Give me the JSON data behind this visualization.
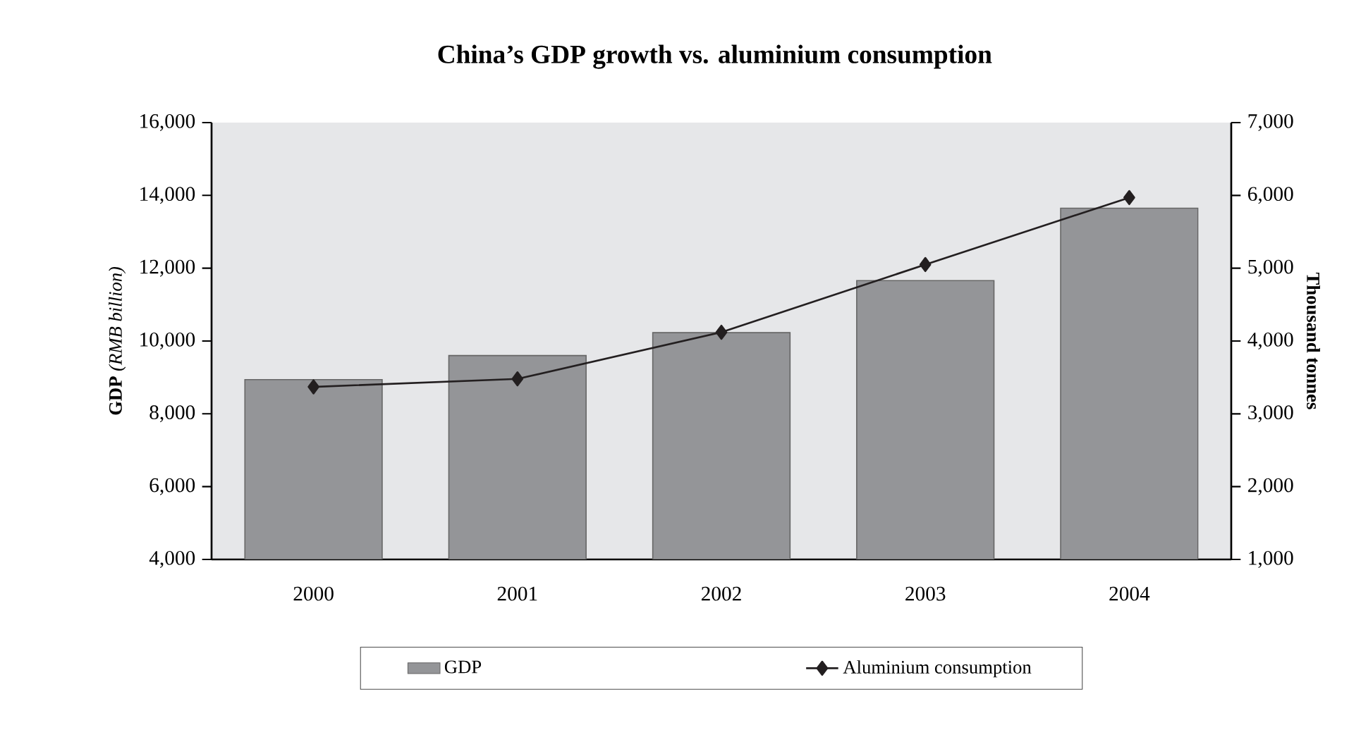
{
  "chart_data": {
    "type": "bar",
    "title": "China’s GDP growth vs. aluminium consumption",
    "ylabel": "**GDP** *(RMB billion)*",
    "y2label": "Thousand tonnes",
    "categories": [
      "2000",
      "2001",
      "2002",
      "2003",
      "2004"
    ],
    "series": [
      {
        "name": "GDP",
        "color": "#949598",
        "values": [
          8940,
          9600,
          10230,
          11660,
          13650
        ]
      },
      {
        "name": "Aluminium consumption",
        "type": "line",
        "axis": "y2",
        "color": "#231f20",
        "marker": "diamond",
        "line_style": "solid",
        "values": [
          3370,
          3480,
          4120,
          5050,
          5970
        ]
      }
    ],
    "ylim": [
      4000,
      16000
    ],
    "yticks": [
      {
        "value": 4000,
        "label": "4,000"
      },
      {
        "value": 6000,
        "label": "6,000"
      },
      {
        "value": 8000,
        "label": "8,000"
      },
      {
        "value": 10000,
        "label": "10,000"
      },
      {
        "value": 12000,
        "label": "12,000"
      },
      {
        "value": 14000,
        "label": "14,000"
      },
      {
        "value": 16000,
        "label": "16,000"
      }
    ],
    "y2lim": [
      1000,
      7000
    ],
    "y2ticks": [
      {
        "value": 1000,
        "label": "1,000"
      },
      {
        "value": 2000,
        "label": "2,000"
      },
      {
        "value": 3000,
        "label": "3,000"
      },
      {
        "value": 4000,
        "label": "4,000"
      },
      {
        "value": 5000,
        "label": "5,000"
      },
      {
        "value": 6000,
        "label": "6,000"
      },
      {
        "value": 7000,
        "label": "7,000"
      }
    ],
    "legend": "bottom",
    "grid": false
  }
}
